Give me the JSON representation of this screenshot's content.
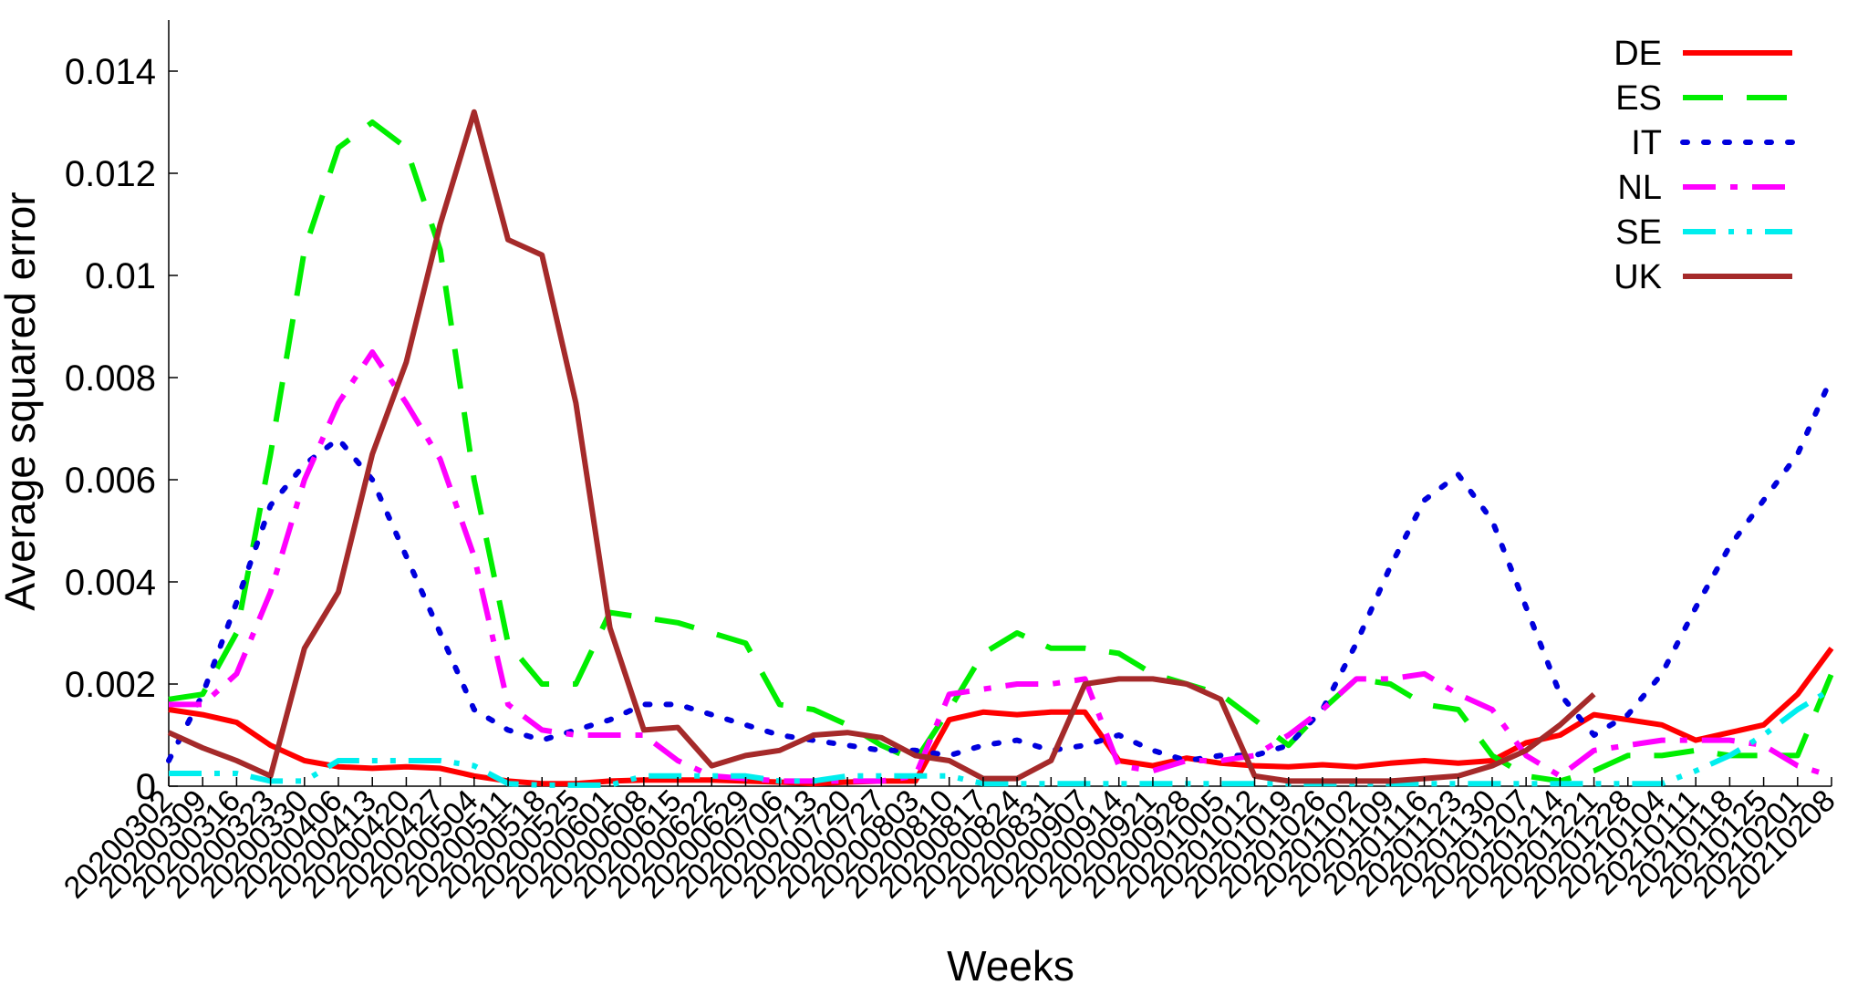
{
  "chart_data": {
    "type": "line",
    "title": "",
    "xlabel": "Weeks",
    "ylabel": "Average squared error",
    "ylim": [
      0,
      0.015
    ],
    "yticks": [
      0,
      0.002,
      0.004,
      0.006,
      0.008,
      0.01,
      0.012,
      0.014
    ],
    "ytick_labels": [
      "0",
      "0.002",
      "0.004",
      "0.006",
      "0.008",
      "0.01",
      "0.012",
      "0.014"
    ],
    "grid": false,
    "legend_position": "top-right",
    "x": [
      "20200302",
      "20200309",
      "20200316",
      "20200323",
      "20200330",
      "20200406",
      "20200413",
      "20200420",
      "20200427",
      "20200504",
      "20200511",
      "20200518",
      "20200525",
      "20200601",
      "20200608",
      "20200615",
      "20200622",
      "20200629",
      "20200706",
      "20200713",
      "20200720",
      "20200727",
      "20200803",
      "20200810",
      "20200817",
      "20200824",
      "20200831",
      "20200907",
      "20200914",
      "20200921",
      "20200928",
      "20201005",
      "20201012",
      "20201019",
      "20201026",
      "20201102",
      "20201109",
      "20201116",
      "20201123",
      "20201130",
      "20201207",
      "20201214",
      "20201221",
      "20201228",
      "20210104",
      "20210111",
      "20210118",
      "20210125",
      "20210201",
      "20210208"
    ],
    "series": [
      {
        "name": "DE",
        "color": "#ff0000",
        "dash": "solid",
        "values": [
          0.0015,
          0.0014,
          0.00125,
          0.0008,
          0.0005,
          0.00038,
          0.00035,
          0.00038,
          0.00035,
          0.0002,
          0.0001,
          5e-05,
          5e-05,
          0.0001,
          0.00012,
          0.00012,
          0.00012,
          0.0001,
          8e-05,
          5e-05,
          8e-05,
          0.0001,
          0.0001,
          0.0013,
          0.00145,
          0.0014,
          0.00145,
          0.00145,
          0.0005,
          0.0004,
          0.00055,
          0.00045,
          0.0004,
          0.00038,
          0.00042,
          0.00038,
          0.00045,
          0.0005,
          0.00045,
          0.0005,
          0.00085,
          0.001,
          0.0014,
          0.0013,
          0.0012,
          0.0009,
          0.00105,
          0.0012,
          0.0018,
          0.0027
        ]
      },
      {
        "name": "ES",
        "color": "#00ee00",
        "dash": "long-dash",
        "values": [
          0.0017,
          0.0018,
          0.003,
          0.0065,
          0.0105,
          0.0125,
          0.013,
          0.0125,
          0.0105,
          0.006,
          0.0028,
          0.002,
          0.002,
          0.0034,
          0.0033,
          0.0032,
          0.003,
          0.0028,
          0.0016,
          0.0015,
          0.0012,
          0.0008,
          0.0005,
          0.0015,
          0.0026,
          0.003,
          0.0027,
          0.0027,
          0.0026,
          0.0022,
          0.002,
          0.0018,
          0.0013,
          0.0008,
          0.0015,
          0.0021,
          0.002,
          0.0016,
          0.0015,
          0.0006,
          0.0002,
          0.0001,
          0.0003,
          0.0006,
          0.0006,
          0.0007,
          0.0006,
          0.0006,
          0.0006,
          0.0022
        ]
      },
      {
        "name": "IT",
        "color": "#0000dd",
        "dash": "dotted",
        "values": [
          0.0005,
          0.0018,
          0.0036,
          0.0055,
          0.0063,
          0.0068,
          0.006,
          0.0045,
          0.003,
          0.0015,
          0.0011,
          0.0009,
          0.0011,
          0.0013,
          0.0016,
          0.0016,
          0.0014,
          0.0012,
          0.001,
          0.0009,
          0.0008,
          0.0007,
          0.0007,
          0.0006,
          0.0008,
          0.0009,
          0.0007,
          0.0008,
          0.001,
          0.0007,
          0.0005,
          0.0006,
          0.0006,
          0.0008,
          0.0015,
          0.0028,
          0.0043,
          0.0056,
          0.0061,
          0.0052,
          0.0035,
          0.0018,
          0.001,
          0.0014,
          0.0022,
          0.0035,
          0.0047,
          0.0056,
          0.0065,
          0.008
        ]
      },
      {
        "name": "NL",
        "color": "#ff00ff",
        "dash": "dash-dot",
        "values": [
          0.0016,
          0.0016,
          0.0022,
          0.0038,
          0.006,
          0.0075,
          0.0085,
          0.0075,
          0.0064,
          0.0045,
          0.0016,
          0.0011,
          0.001,
          0.001,
          0.001,
          0.0005,
          0.0002,
          0.00015,
          0.0001,
          0.0001,
          0.0001,
          0.0001,
          0.0002,
          0.0018,
          0.0019,
          0.002,
          0.002,
          0.0021,
          0.0004,
          0.0003,
          0.0005,
          0.0005,
          0.0006,
          0.001,
          0.0015,
          0.0021,
          0.0021,
          0.0022,
          0.0018,
          0.0015,
          0.0006,
          0.0002,
          0.0007,
          0.0008,
          0.0009,
          0.0009,
          0.0009,
          0.0008,
          0.0004,
          0.0002
        ]
      },
      {
        "name": "SE",
        "color": "#00eeee",
        "dash": "dash-dot-dot",
        "values": [
          0.00025,
          0.00025,
          0.00025,
          0.0001,
          0.0001,
          0.0005,
          0.0005,
          0.0005,
          0.0005,
          0.0004,
          5e-05,
          2e-05,
          2e-05,
          2e-05,
          0.0002,
          0.0002,
          0.0002,
          0.0002,
          0.0001,
          0.0001,
          0.0002,
          0.0002,
          0.0002,
          0.0002,
          5e-05,
          5e-05,
          5e-05,
          5e-05,
          5e-05,
          5e-05,
          5e-05,
          5e-05,
          5e-05,
          5e-05,
          5e-05,
          5e-05,
          5e-05,
          5e-05,
          5e-05,
          5e-05,
          5e-05,
          5e-05,
          5e-05,
          5e-05,
          5e-05,
          0.0003,
          0.0006,
          0.001,
          0.0015,
          0.0019
        ]
      },
      {
        "name": "UK",
        "color": "#a52a2a",
        "dash": "solid",
        "values": [
          0.00105,
          0.00075,
          0.0005,
          0.0002,
          0.0027,
          0.0038,
          0.0065,
          0.0083,
          0.011,
          0.0132,
          0.0107,
          0.0104,
          0.0075,
          0.0031,
          0.0011,
          0.00115,
          0.0004,
          0.0006,
          0.0007,
          0.001,
          0.00105,
          0.00095,
          0.0006,
          0.0005,
          0.00015,
          0.00015,
          0.0005,
          0.002,
          0.0021,
          0.0021,
          0.002,
          0.0017,
          0.0002,
          0.0001,
          0.0001,
          0.0001,
          0.0001,
          0.00015,
          0.0002,
          0.0004,
          0.0007,
          0.0012,
          0.0018,
          null,
          null,
          null,
          null,
          null,
          null,
          null
        ]
      }
    ]
  }
}
